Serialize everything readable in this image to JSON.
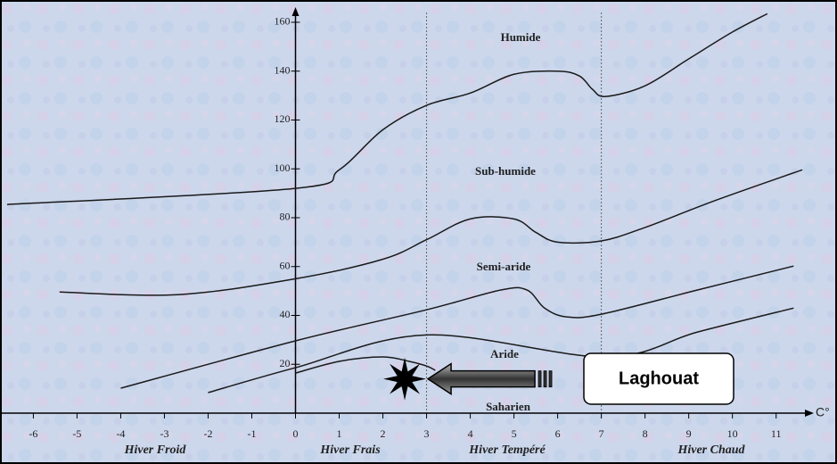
{
  "chart_data": {
    "type": "line",
    "xlim": [
      -6.6,
      11.7
    ],
    "ylim": [
      0,
      164
    ],
    "xticks": [
      -6,
      -5,
      -4,
      -3,
      -2,
      -1,
      0,
      1,
      2,
      3,
      4,
      5,
      6,
      7,
      8,
      9,
      10,
      11
    ],
    "yticks": [
      20,
      40,
      60,
      80,
      100,
      120,
      140,
      160
    ],
    "x_unit": "C°",
    "color": "#1a1a1a",
    "series": [
      {
        "x": [
          -6.6,
          0,
          1,
          2,
          3,
          4,
          5,
          6,
          6.5,
          6.8,
          7.1,
          8,
          9,
          10,
          10.8
        ],
        "values": [
          85.4,
          92,
          99.6,
          116,
          126,
          131,
          138.7,
          140,
          138,
          132.5,
          129.6,
          134,
          145,
          156,
          163.5
        ]
      },
      {
        "x": [
          -5.4,
          -2.7,
          0,
          2,
          3,
          4,
          5,
          5.5,
          6,
          7,
          8,
          9.6,
          11.6
        ],
        "values": [
          49.6,
          48.5,
          55,
          63,
          71,
          79.5,
          79.5,
          74,
          70,
          70.5,
          76,
          87,
          99.6
        ]
      },
      {
        "x": [
          -4,
          0,
          3,
          4.7,
          5.3,
          5.7,
          6.2,
          7,
          9.2,
          11.4
        ],
        "values": [
          10.2,
          29.6,
          42.3,
          50.4,
          50.4,
          43,
          39.4,
          40.5,
          50.4,
          60.2
        ]
      },
      {
        "x": [
          -2,
          0,
          3,
          7.1,
          9.2,
          11.4
        ],
        "values": [
          8.4,
          18.6,
          32,
          23,
          33.2,
          43
        ]
      },
      {
        "x": [
          0,
          1,
          2,
          2.6,
          3,
          3.2
        ],
        "values": [
          16.4,
          21.2,
          23,
          21.2,
          19.3,
          17.5
        ]
      }
    ],
    "regions": [
      "Humide",
      "Sub-humide",
      "Semi-aride",
      "Aride",
      "Saharien"
    ],
    "winters": [
      "Hiver Froid",
      "Hiver Frais",
      "Hiver Tempéré",
      "Hiver Chaud"
    ],
    "marker": {
      "label": "Laghouat",
      "x": 2.5,
      "y": 14
    }
  }
}
